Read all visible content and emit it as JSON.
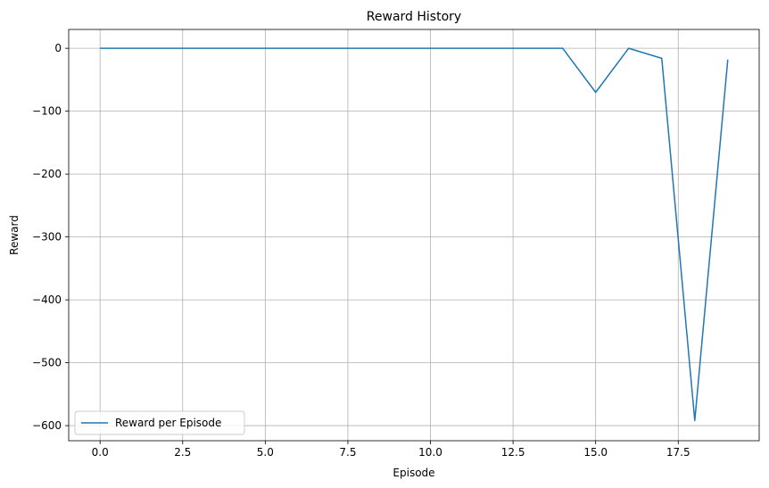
{
  "chart_data": {
    "type": "line",
    "title": "Reward History",
    "xlabel": "Episode",
    "ylabel": "Reward",
    "xlim": [
      -0.95,
      19.95
    ],
    "ylim": [
      -624,
      30
    ],
    "xticks": [
      0,
      2.5,
      5,
      7.5,
      10,
      12.5,
      15,
      17.5
    ],
    "xtick_labels": [
      "0.0",
      "2.5",
      "5.0",
      "7.5",
      "10.0",
      "12.5",
      "15.0",
      "17.5"
    ],
    "yticks": [
      0,
      -100,
      -200,
      -300,
      -400,
      -500,
      -600
    ],
    "ytick_labels": [
      "0",
      "−100",
      "−200",
      "−300",
      "−400",
      "−500",
      "−600"
    ],
    "grid": true,
    "legend_position": "lower-left",
    "series": [
      {
        "name": "Reward per Episode",
        "color": "#1f77b4",
        "x": [
          0,
          1,
          2,
          3,
          4,
          5,
          6,
          7,
          8,
          9,
          10,
          11,
          12,
          13,
          14,
          15,
          16,
          17,
          18,
          19
        ],
        "y": [
          0,
          0,
          0,
          0,
          0,
          0,
          0,
          0,
          0,
          0,
          0,
          0,
          0,
          0,
          0,
          -70,
          0,
          -16,
          -592,
          -18
        ]
      }
    ]
  }
}
